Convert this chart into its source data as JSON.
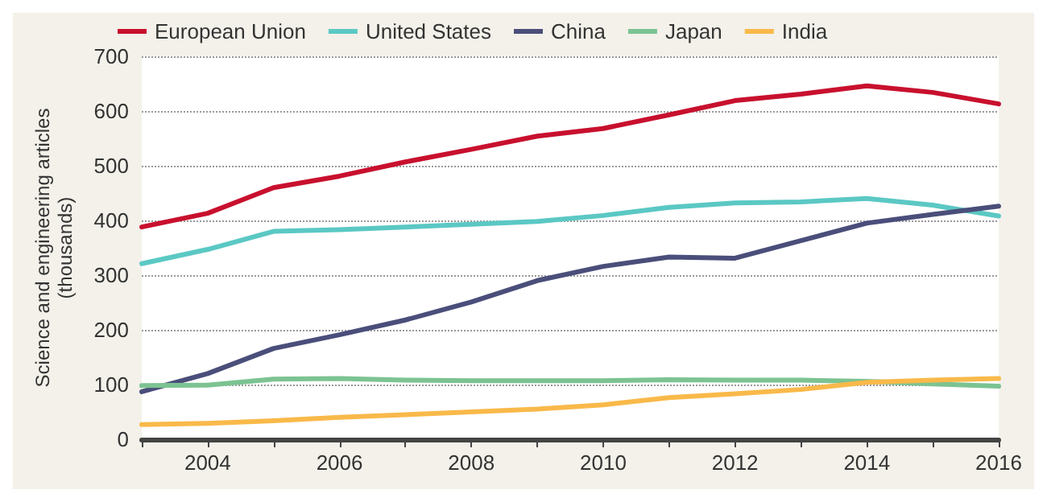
{
  "chart_data": {
    "type": "line",
    "ylabel": "Science and engineering articles\n(thousands)",
    "x": [
      2003,
      2004,
      2005,
      2006,
      2007,
      2008,
      2009,
      2010,
      2011,
      2012,
      2013,
      2014,
      2015,
      2016
    ],
    "xlim": [
      2003,
      2016
    ],
    "xticks": [
      {
        "value": 2003,
        "label": null
      },
      2004,
      {
        "value": 2005,
        "label": null
      },
      2006,
      {
        "value": 2007,
        "label": null
      },
      2008,
      {
        "value": 2009,
        "label": null
      },
      2010,
      {
        "value": 2011,
        "label": null
      },
      2012,
      {
        "value": 2013,
        "label": null
      },
      2014,
      {
        "value": 2015,
        "label": null
      },
      2016
    ],
    "ylim": [
      0,
      700
    ],
    "yticks": [
      0,
      100,
      200,
      300,
      400,
      500,
      600,
      700
    ],
    "grid": "y",
    "legend": "top left",
    "line_style": "solid",
    "marker": "none",
    "series": [
      {
        "name": "European Union",
        "color": "#c8102e",
        "values": [
          388,
          413,
          460,
          481,
          507,
          530,
          554,
          568,
          593,
          619,
          631,
          646,
          634,
          613
        ]
      },
      {
        "name": "United States",
        "color": "#5bc8c4",
        "values": [
          321,
          347,
          380,
          383,
          388,
          393,
          398,
          409,
          424,
          432,
          434,
          440,
          428,
          408
        ]
      },
      {
        "name": "China",
        "color": "#4a4e7a",
        "values": [
          87,
          120,
          166,
          191,
          218,
          251,
          290,
          316,
          333,
          331,
          363,
          395,
          411,
          426
        ]
      },
      {
        "name": "Japan",
        "color": "#7cc392",
        "values": [
          98,
          99,
          110,
          111,
          108,
          107,
          107,
          107,
          109,
          108,
          108,
          106,
          101,
          97
        ]
      },
      {
        "name": "India",
        "color": "#f9b94a",
        "values": [
          27,
          29,
          34,
          40,
          45,
          50,
          55,
          63,
          76,
          83,
          91,
          104,
          108,
          111
        ]
      }
    ]
  }
}
